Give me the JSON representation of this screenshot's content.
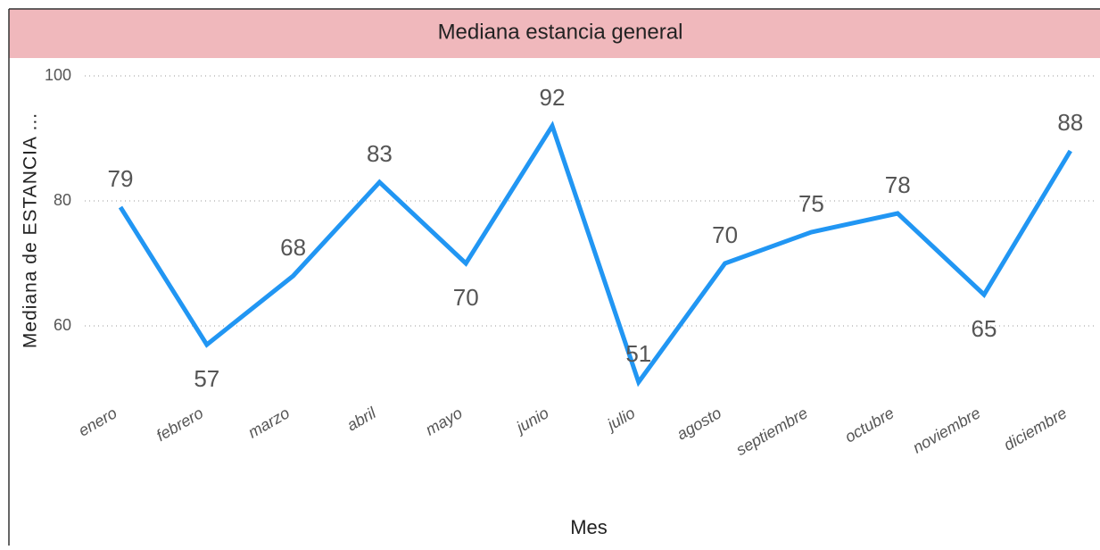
{
  "chart_data": {
    "type": "line",
    "title": "Mediana estancia general",
    "x_label": "Mes",
    "y_label": "Mediana de ESTANCIA ...",
    "categories": [
      "enero",
      "febrero",
      "marzo",
      "abril",
      "mayo",
      "junio",
      "julio",
      "agosto",
      "septiembre",
      "octubre",
      "noviembre",
      "diciembre"
    ],
    "series": [
      {
        "name": "Mediana de ESTANCIA",
        "color": "#2196f3",
        "values": [
          79,
          57,
          68,
          83,
          70,
          92,
          51,
          70,
          75,
          78,
          65,
          88
        ]
      }
    ],
    "ylim": [
      50,
      100
    ],
    "yticks": [
      60,
      80,
      100
    ],
    "grid": true
  }
}
